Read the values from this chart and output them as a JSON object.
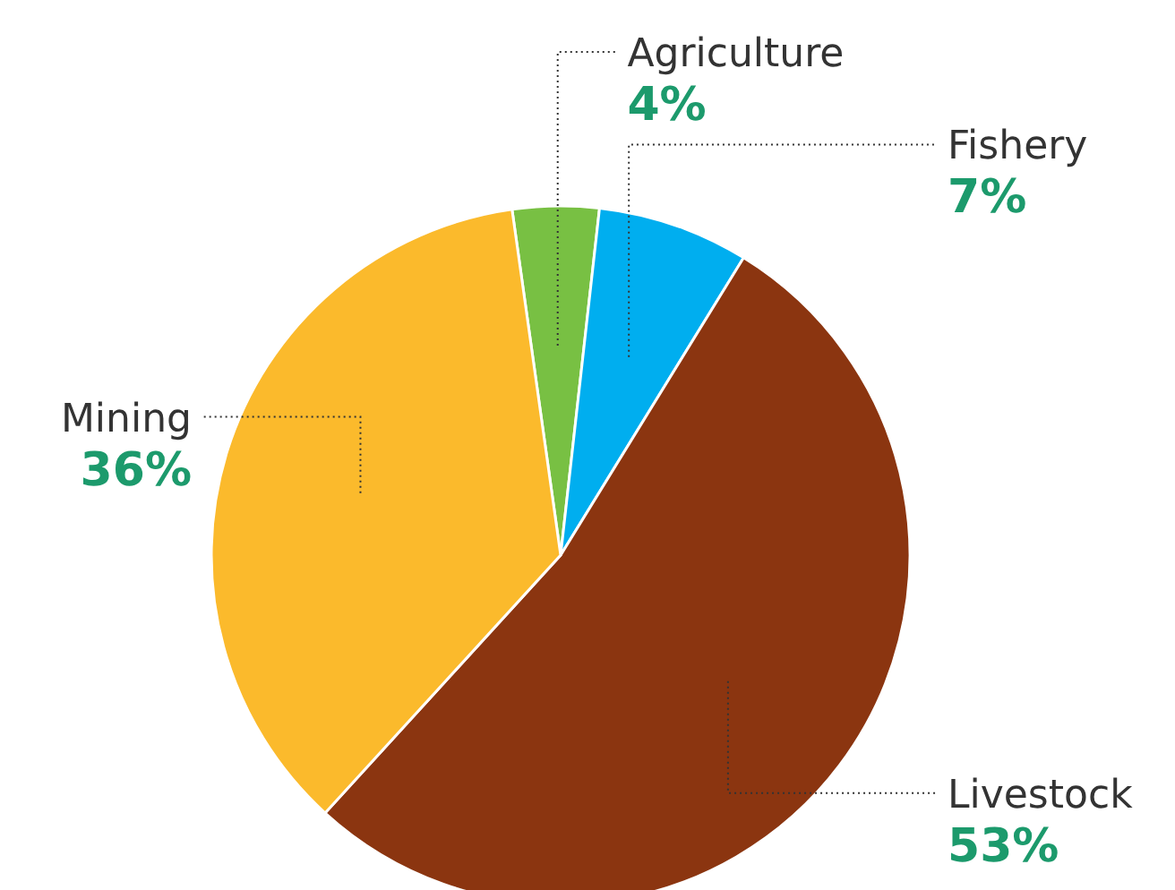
{
  "chart_data": {
    "type": "pie",
    "categories": [
      "Agriculture",
      "Fishery",
      "Livestock",
      "Mining"
    ],
    "values": [
      4,
      7,
      53,
      36
    ],
    "value_labels": [
      "4%",
      "7%",
      "53%",
      "36%"
    ],
    "colors": [
      "#78c043",
      "#00aeef",
      "#8b3510",
      "#fbba2c"
    ]
  }
}
